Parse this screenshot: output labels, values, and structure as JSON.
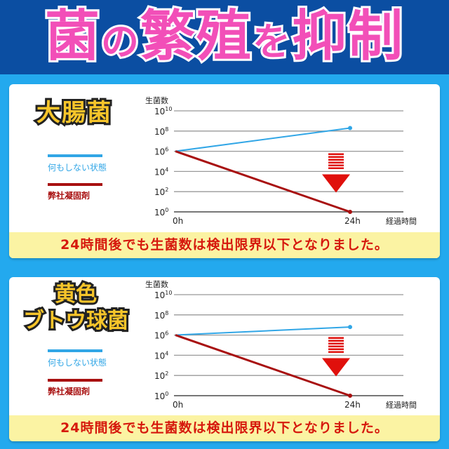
{
  "header": {
    "title_parts": [
      "菌",
      "の",
      "繁殖",
      "を",
      "抑制"
    ]
  },
  "colors": {
    "header_bg": "#0b4ea2",
    "page_bg": "#23a9ee",
    "title": "#f24fb8",
    "untreated": "#31a6e6",
    "treated": "#a81010",
    "arrow": "#e0100c",
    "strip_bg": "#fbf3a3",
    "strip_text": "#d6190d"
  },
  "chart_data": [
    {
      "type": "line",
      "name_label": "大腸菌",
      "ylabel": "生菌数",
      "xlabel": "経過時間",
      "yscale": "log",
      "ylim": [
        1,
        10000000000
      ],
      "y_ticks": [
        {
          "base": "10",
          "exp": "10"
        },
        {
          "base": "10",
          "exp": "8"
        },
        {
          "base": "10",
          "exp": "6"
        },
        {
          "base": "10",
          "exp": "4"
        },
        {
          "base": "10",
          "exp": "2"
        },
        {
          "base": "10",
          "exp": "0"
        }
      ],
      "x_ticks": [
        "0h",
        "24h"
      ],
      "grid": true,
      "series": [
        {
          "name": "何もしない状態",
          "color": "#31a6e6",
          "x": [
            0,
            24
          ],
          "y_exp": [
            6,
            8.3
          ]
        },
        {
          "name": "弊社凝固剤",
          "color": "#a81010",
          "x": [
            0,
            24
          ],
          "y_exp": [
            6,
            0
          ]
        }
      ],
      "annotation": "down-arrow",
      "caption": "24時間後でも生菌数は検出限界以下となりました。"
    },
    {
      "type": "line",
      "name_label": "黄色\nブトウ球菌",
      "name_lines": [
        "黄色",
        "ブトウ球菌"
      ],
      "ylabel": "生菌数",
      "xlabel": "経過時間",
      "yscale": "log",
      "ylim": [
        1,
        10000000000
      ],
      "y_ticks": [
        {
          "base": "10",
          "exp": "10"
        },
        {
          "base": "10",
          "exp": "8"
        },
        {
          "base": "10",
          "exp": "6"
        },
        {
          "base": "10",
          "exp": "4"
        },
        {
          "base": "10",
          "exp": "2"
        },
        {
          "base": "10",
          "exp": "0"
        }
      ],
      "x_ticks": [
        "0h",
        "24h"
      ],
      "grid": true,
      "series": [
        {
          "name": "何もしない状態",
          "color": "#31a6e6",
          "x": [
            0,
            24
          ],
          "y_exp": [
            6,
            6.8
          ]
        },
        {
          "name": "弊社凝固剤",
          "color": "#a81010",
          "x": [
            0,
            24
          ],
          "y_exp": [
            6,
            0
          ]
        }
      ],
      "annotation": "down-arrow",
      "caption": "24時間後でも生菌数は検出限界以下となりました。"
    }
  ]
}
